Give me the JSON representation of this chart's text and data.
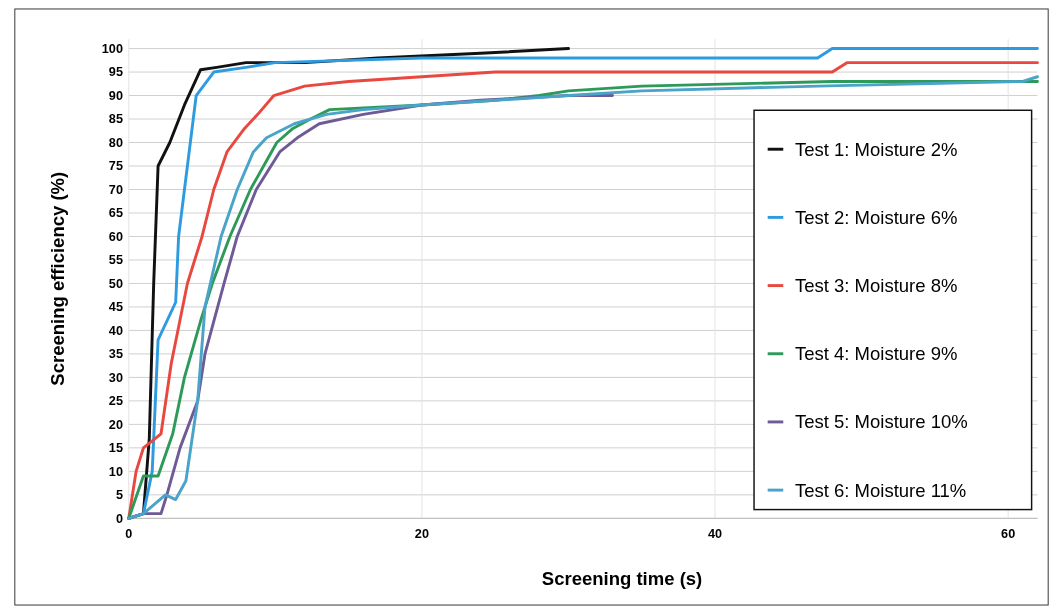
{
  "chart_data": {
    "type": "line",
    "xlabel": "Screening time (s)",
    "ylabel": "Screening efficiency (%)",
    "xlim": [
      0,
      62
    ],
    "ylim": [
      0,
      102
    ],
    "xticks": [
      0,
      20,
      40,
      60
    ],
    "yticks": [
      0,
      5,
      10,
      15,
      20,
      25,
      30,
      35,
      40,
      45,
      50,
      55,
      60,
      65,
      70,
      75,
      80,
      85,
      90,
      95,
      100
    ],
    "grid": true,
    "legend": "right",
    "marker": "none",
    "line_style": "solid",
    "series": [
      {
        "name": "Test 1: Moisture 2%",
        "color": "#111111",
        "x": [
          0,
          1,
          1.4,
          1.7,
          2,
          2.8,
          3.8,
          4.9,
          6,
          8,
          12,
          17,
          24,
          30
        ],
        "values": [
          0,
          1,
          17,
          50,
          75,
          80,
          88,
          95.5,
          96,
          97,
          97,
          98,
          99,
          100
        ]
      },
      {
        "name": "Test 2: Moisture 6%",
        "color": "#2e9be0",
        "x": [
          0,
          1,
          1.6,
          2,
          3.2,
          3.4,
          4.6,
          5.8,
          8,
          10,
          20,
          47,
          48,
          62
        ],
        "values": [
          0,
          1,
          10,
          38,
          46,
          60,
          90,
          95,
          96,
          97,
          98,
          98,
          100,
          100
        ]
      },
      {
        "name": "Test 3: Moisture 8%",
        "color": "#e8483f",
        "x": [
          0,
          0.5,
          1,
          2.2,
          2.9,
          4,
          5,
          5.8,
          6.7,
          7.9,
          8.8,
          9.9,
          12,
          15,
          20,
          25,
          48,
          49,
          62
        ],
        "values": [
          0,
          10,
          15,
          18,
          33,
          50,
          60,
          70,
          78,
          83,
          86,
          90,
          92,
          93,
          94,
          95,
          95,
          97,
          97
        ]
      },
      {
        "name": "Test 4: Moisture 9%",
        "color": "#2e9a5a",
        "x": [
          0,
          1,
          2,
          3,
          3.8,
          4.9,
          5.7,
          6.9,
          8.3,
          9.2,
          10.1,
          11.2,
          12.4,
          13.7,
          20,
          25,
          28,
          30,
          35,
          48,
          62
        ],
        "values": [
          0,
          9,
          9,
          18,
          30,
          42,
          50,
          60,
          70,
          75,
          80,
          83,
          85,
          87,
          88,
          89,
          90,
          91,
          92,
          93,
          93
        ]
      },
      {
        "name": "Test 5: Moisture 10%",
        "color": "#6e5a96",
        "x": [
          0,
          1,
          2.2,
          2.6,
          3.5,
          4.7,
          5.2,
          6.5,
          7.4,
          8.7,
          10.3,
          11.5,
          13,
          16,
          20,
          24,
          30,
          33
        ],
        "values": [
          0,
          1,
          1,
          5,
          15,
          25,
          35,
          50,
          60,
          70,
          78,
          81,
          84,
          86,
          88,
          89,
          90,
          90
        ]
      },
      {
        "name": "Test 6: Moisture 11%",
        "color": "#4aa3c8",
        "x": [
          0,
          1,
          2.5,
          3.2,
          3.9,
          4.7,
          5.2,
          6.3,
          7.4,
          8.5,
          9.4,
          11.3,
          13.5,
          16,
          20,
          25,
          30,
          35,
          47,
          61,
          62
        ],
        "values": [
          0,
          1,
          5,
          4,
          8,
          25,
          45,
          60,
          70,
          78,
          81,
          84,
          86,
          87,
          88,
          89,
          90,
          91,
          92,
          93,
          94
        ]
      }
    ]
  }
}
